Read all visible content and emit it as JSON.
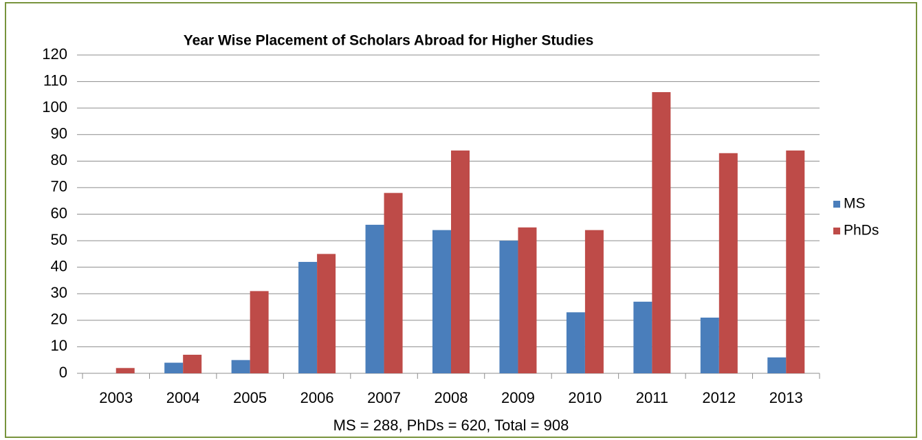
{
  "chart_data": {
    "type": "bar",
    "title": "Year Wise Placement of Scholars Abroad for Higher Studies",
    "x_label": "MS = 288, PhDs = 620, Total = 908",
    "categories": [
      "2003",
      "2004",
      "2005",
      "2006",
      "2007",
      "2008",
      "2009",
      "2010",
      "2011",
      "2012",
      "2013"
    ],
    "series": [
      {
        "name": "MS",
        "color": "#4a7ebb",
        "values": [
          0,
          4,
          5,
          42,
          56,
          54,
          50,
          23,
          27,
          21,
          6
        ]
      },
      {
        "name": "PhDs",
        "color": "#be4b48",
        "values": [
          2,
          7,
          31,
          45,
          68,
          84,
          55,
          54,
          106,
          83,
          84
        ]
      }
    ],
    "ylim": [
      0,
      120
    ],
    "yticks": [
      0,
      10,
      20,
      30,
      40,
      50,
      60,
      70,
      80,
      90,
      100,
      110,
      120
    ],
    "grid": true,
    "legend": "right"
  }
}
